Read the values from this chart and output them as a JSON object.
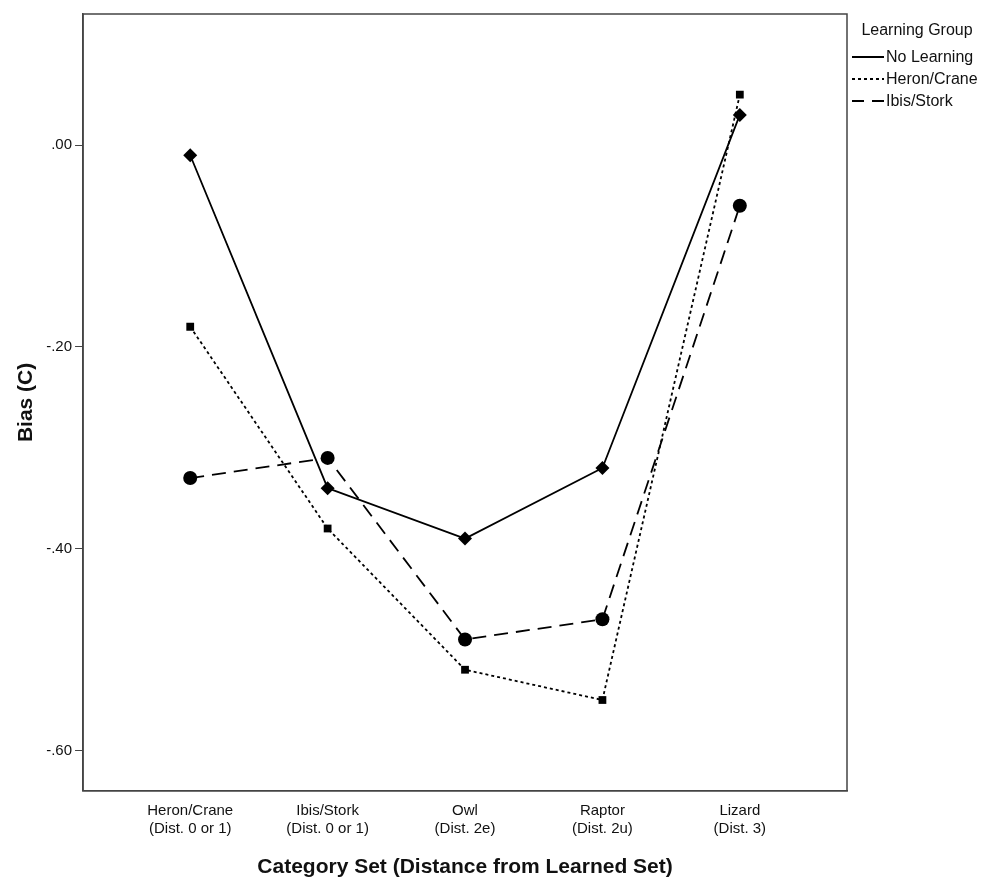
{
  "chart_data": {
    "type": "line",
    "xlabel": "Category Set (Distance from Learned Set)",
    "ylabel": "Bias (C)",
    "legend_title": "Learning Group",
    "legend": "top right",
    "categories": [
      "Heron/Crane (Dist. 0 or 1)",
      "Ibis/Stork (Dist. 0 or 1)",
      "Owl (Dist. 2e)",
      "Raptor (Dist. 2u)",
      "Lizard (Dist. 3)"
    ],
    "series": [
      {
        "name": "No Learning",
        "color": "#000000",
        "marker": "diamond",
        "line_style": "solid",
        "values": [
          -0.01,
          -0.34,
          -0.39,
          -0.32,
          0.03
        ]
      },
      {
        "name": "Heron/Crane",
        "color": "#000000",
        "marker": "square",
        "line_style": "dotted",
        "values": [
          -0.18,
          -0.38,
          -0.52,
          -0.55,
          0.05
        ]
      },
      {
        "name": "Ibis/Stork",
        "color": "#000000",
        "marker": "circle",
        "line_style": "dashed",
        "values": [
          -0.33,
          -0.31,
          -0.49,
          -0.47,
          -0.06
        ]
      }
    ],
    "ylim": [
      -0.64,
      0.13
    ],
    "yticks": [
      {
        "value": 0,
        "label": ".00"
      },
      {
        "value": -0.2,
        "label": "-.20"
      },
      {
        "value": -0.4,
        "label": "-.40"
      },
      {
        "value": -0.6,
        "label": "-.60"
      }
    ]
  }
}
